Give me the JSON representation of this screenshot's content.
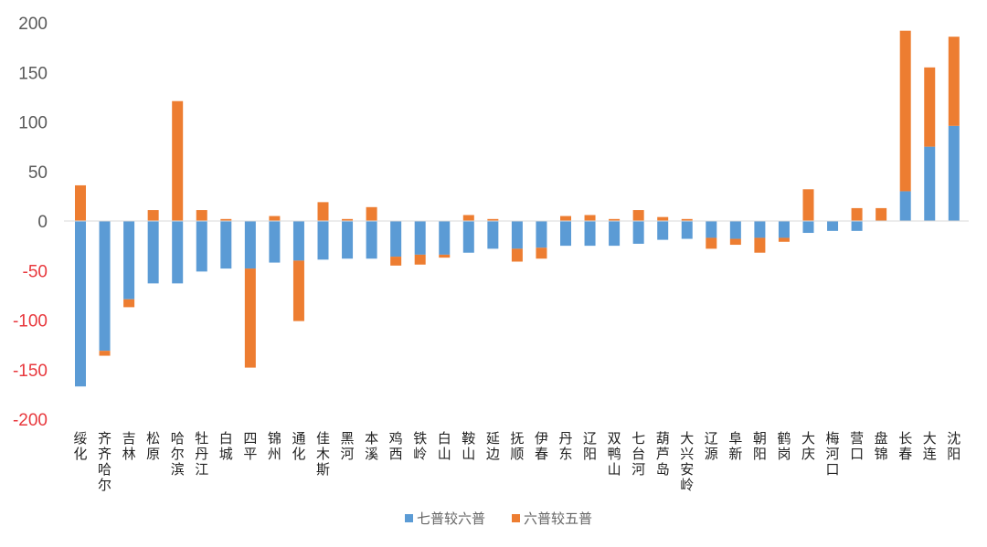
{
  "chart_data": {
    "type": "bar",
    "stacked": true,
    "ylim": [
      -200,
      200
    ],
    "yticks": [
      200,
      150,
      100,
      50,
      0,
      -50,
      -100,
      -150,
      -200
    ],
    "grid": false,
    "legend_position": "bottom",
    "colors": {
      "series_1": "#5B9BD5",
      "series_2": "#ED7D31",
      "positive_tick": "#595959",
      "negative_tick": "#E8383D",
      "axis": "#d9d9d9"
    },
    "categories": [
      "绥化",
      "齐齐哈尔",
      "吉林",
      "松原",
      "哈尔滨",
      "牡丹江",
      "白城",
      "四平",
      "锦州",
      "通化",
      "佳木斯",
      "黑河",
      "本溪",
      "鸡西",
      "铁岭",
      "白山",
      "鞍山",
      "延边",
      "抚顺",
      "伊春",
      "丹东",
      "辽阳",
      "双鸭山",
      "七台河",
      "葫芦岛",
      "大兴安岭",
      "辽源",
      "阜新",
      "朝阳",
      "鹤岗",
      "大庆",
      "梅河口",
      "营口",
      "盘锦",
      "长春",
      "大连",
      "沈阳"
    ],
    "series": [
      {
        "name": "七普较六普",
        "values": [
          -167,
          -131,
          -79,
          -63,
          -63,
          -51,
          -48,
          -48,
          -42,
          -40,
          -39,
          -38,
          -38,
          -36,
          -34,
          -34,
          -32,
          -28,
          -28,
          -27,
          -25,
          -25,
          -25,
          -23,
          -19,
          -18,
          -17,
          -18,
          -17,
          -17,
          -12,
          -10,
          -10,
          0,
          30,
          75,
          96
        ]
      },
      {
        "name": "六普较五普",
        "values": [
          36,
          -5,
          -8,
          11,
          121,
          11,
          2,
          -100,
          5,
          -61,
          19,
          2,
          14,
          -9,
          -10,
          -3,
          6,
          2,
          -13,
          -11,
          5,
          6,
          2,
          11,
          4,
          2,
          -11,
          -6,
          -15,
          -4,
          32,
          0,
          13,
          13,
          162,
          80,
          90
        ]
      }
    ]
  }
}
